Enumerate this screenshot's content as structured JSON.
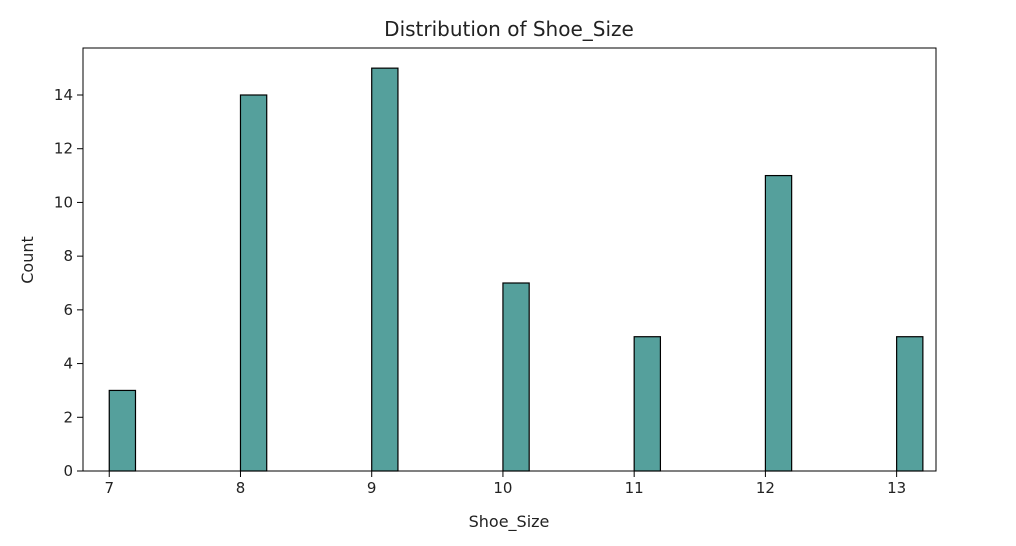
{
  "chart_data": {
    "type": "bar",
    "title": "Distribution of Shoe_Size",
    "xlabel": "Shoe_Size",
    "ylabel": "Count",
    "categories": [
      7,
      8,
      9,
      10,
      11,
      12,
      13
    ],
    "values": [
      3,
      14,
      15,
      7,
      5,
      11,
      5
    ],
    "xlim": [
      6.8,
      13.3
    ],
    "ylim": [
      0,
      15.75
    ],
    "xticks": [
      7,
      8,
      9,
      10,
      11,
      12,
      13
    ],
    "yticks": [
      0,
      2,
      4,
      6,
      8,
      10,
      12,
      14
    ],
    "bar_color": "#55a09c",
    "edge_color": "#000000",
    "grid": false,
    "legend": "none"
  }
}
